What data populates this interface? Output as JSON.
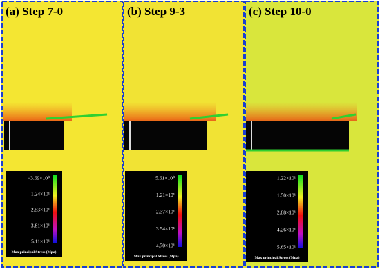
{
  "panels": [
    {
      "label": "(a) Step 7-0",
      "legend": {
        "title": "Max principal Stress (Mpa)",
        "ticks": [
          "−3.69×10⁰",
          "1.24×10¹",
          "2.53×10¹",
          "3.81×10¹",
          "5.11×10¹"
        ]
      }
    },
    {
      "label": "(b) Step 9-3",
      "legend": {
        "title": "Max principal Stress (Mpa)",
        "ticks": [
          "5.61×10⁰",
          "1.21×10¹",
          "2.37×10¹",
          "3.54×10¹",
          "4.70×10¹"
        ]
      }
    },
    {
      "label": "(c) Step 10-0",
      "legend": {
        "title": "Max principal Stress (Mpa)",
        "ticks": [
          "1.22×10¹",
          "1.50×10¹",
          "2.88×10¹",
          "4.26×10¹",
          "5.65×10¹"
        ]
      }
    }
  ]
}
